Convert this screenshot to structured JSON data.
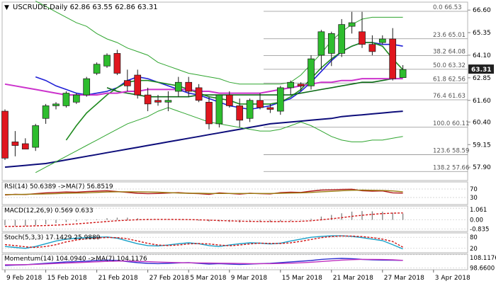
{
  "header": {
    "symbol_line": "USCRUDE,Daily  62.86 63.55 62.86 63.31"
  },
  "colors": {
    "bull": "#2ebd2e",
    "bear": "#e0161e",
    "candle_edge": "#1a1a1a",
    "sma_short": "#1f1fd6",
    "sma_green": "#1f8a1f",
    "sma_dark": "#0c6b16",
    "sma_pink": "#cc33cc",
    "sma_long": "#0d0d7a",
    "bollinger": "#2fa52f",
    "fib": "#909090",
    "price_box": "#202020",
    "rsi_line": "#b01818",
    "rsi_ma": "#9a7a10",
    "macd_hist": "#808080",
    "macd_signal": "#d01414",
    "stoch_k": "#18a0c8",
    "stoch_d": "#d01414",
    "mom_line": "#3030d0",
    "mom_ma": "#c030c0"
  },
  "chart_data": [
    {
      "panel": "main",
      "type": "candlestick",
      "title": "USCRUDE,Daily",
      "ohlc_header": {
        "open": 62.86,
        "high": 63.55,
        "low": 62.86,
        "close": 63.31
      },
      "ylim": [
        57.2,
        67.0
      ],
      "y_ticks": [
        "66.60",
        "65.35",
        "64.10",
        "62.85",
        "61.60",
        "60.40",
        "59.15",
        "57.90"
      ],
      "last_price_label": "63.31",
      "x_tick_labels": [
        "9 Feb 2018",
        "15 Feb 2018",
        "21 Feb 2018",
        "27 Feb 2018",
        "5 Mar 2018",
        "9 Mar 2018",
        "15 Mar 2018",
        "21 Mar 2018",
        "27 Mar 2018",
        "3 Apr 2018"
      ],
      "x_tick_index": [
        0,
        4,
        9,
        14,
        18,
        22,
        27,
        32,
        37,
        42
      ],
      "candles": [
        {
          "o": 61.0,
          "h": 61.1,
          "l": 58.3,
          "c": 58.4
        },
        {
          "o": 59.3,
          "h": 59.9,
          "l": 58.5,
          "c": 59.1
        },
        {
          "o": 59.2,
          "h": 59.5,
          "l": 58.9,
          "c": 58.9
        },
        {
          "o": 59.0,
          "h": 60.3,
          "l": 58.8,
          "c": 60.2
        },
        {
          "o": 60.6,
          "h": 61.4,
          "l": 60.3,
          "c": 61.3
        },
        {
          "o": 61.3,
          "h": 61.5,
          "l": 61.1,
          "c": 61.4
        },
        {
          "o": 61.3,
          "h": 62.1,
          "l": 61.2,
          "c": 62.0
        },
        {
          "o": 61.5,
          "h": 62.0,
          "l": 61.4,
          "c": 61.9
        },
        {
          "o": 61.9,
          "h": 62.9,
          "l": 61.8,
          "c": 62.8
        },
        {
          "o": 63.1,
          "h": 63.7,
          "l": 63.0,
          "c": 63.6
        },
        {
          "o": 63.5,
          "h": 64.2,
          "l": 63.4,
          "c": 64.1
        },
        {
          "o": 64.2,
          "h": 64.4,
          "l": 63.0,
          "c": 63.1
        },
        {
          "o": 62.7,
          "h": 63.3,
          "l": 62.1,
          "c": 62.4
        },
        {
          "o": 63.0,
          "h": 63.3,
          "l": 61.7,
          "c": 61.9
        },
        {
          "o": 61.9,
          "h": 62.3,
          "l": 61.0,
          "c": 61.4
        },
        {
          "o": 61.6,
          "h": 61.9,
          "l": 61.3,
          "c": 61.5
        },
        {
          "o": 61.5,
          "h": 62.1,
          "l": 61.0,
          "c": 61.6
        },
        {
          "o": 62.1,
          "h": 62.9,
          "l": 61.8,
          "c": 62.6
        },
        {
          "o": 62.6,
          "h": 62.9,
          "l": 61.8,
          "c": 62.1
        },
        {
          "o": 62.3,
          "h": 62.5,
          "l": 61.5,
          "c": 61.6
        },
        {
          "o": 61.5,
          "h": 61.8,
          "l": 60.0,
          "c": 60.3
        },
        {
          "o": 60.3,
          "h": 61.9,
          "l": 60.1,
          "c": 61.9
        },
        {
          "o": 61.9,
          "h": 62.1,
          "l": 61.2,
          "c": 61.3
        },
        {
          "o": 61.3,
          "h": 61.7,
          "l": 60.1,
          "c": 60.5
        },
        {
          "o": 60.6,
          "h": 61.7,
          "l": 60.4,
          "c": 61.6
        },
        {
          "o": 61.6,
          "h": 62.0,
          "l": 61.1,
          "c": 61.2
        },
        {
          "o": 61.2,
          "h": 61.4,
          "l": 60.9,
          "c": 61.1
        },
        {
          "o": 61.0,
          "h": 62.4,
          "l": 60.8,
          "c": 62.3
        },
        {
          "o": 62.3,
          "h": 62.7,
          "l": 61.9,
          "c": 62.6
        },
        {
          "o": 62.5,
          "h": 62.6,
          "l": 62.1,
          "c": 62.4
        },
        {
          "o": 62.4,
          "h": 64.1,
          "l": 62.2,
          "c": 63.9
        },
        {
          "o": 64.1,
          "h": 65.5,
          "l": 63.3,
          "c": 65.4
        },
        {
          "o": 64.2,
          "h": 65.4,
          "l": 63.5,
          "c": 65.3
        },
        {
          "o": 64.2,
          "h": 66.1,
          "l": 64.0,
          "c": 65.8
        },
        {
          "o": 65.7,
          "h": 66.5,
          "l": 65.3,
          "c": 65.9
        },
        {
          "o": 65.4,
          "h": 66.5,
          "l": 64.5,
          "c": 64.7
        },
        {
          "o": 64.7,
          "h": 65.2,
          "l": 64.1,
          "c": 64.3
        },
        {
          "o": 64.8,
          "h": 65.2,
          "l": 64.7,
          "c": 65.0
        },
        {
          "o": 65.0,
          "h": 65.6,
          "l": 62.7,
          "c": 62.8
        },
        {
          "o": 62.86,
          "h": 63.55,
          "l": 62.86,
          "c": 63.31
        }
      ],
      "series": [
        {
          "name": "",
          "color_key": "sma_short",
          "values": [
            null,
            null,
            null,
            62.9,
            62.7,
            62.4,
            62.2,
            62.0,
            61.9,
            62.0,
            62.1,
            62.3,
            62.7,
            62.9,
            62.8,
            62.6,
            62.4,
            62.2,
            62.0,
            61.9,
            61.7,
            61.5,
            61.3,
            61.2,
            61.1,
            61.2,
            61.3,
            61.5,
            61.7,
            62.1,
            62.6,
            63.2,
            63.8,
            64.3,
            64.6,
            64.8,
            64.8,
            64.7,
            64.7,
            64.6
          ]
        },
        {
          "name": "",
          "color_key": "sma_green",
          "values": [
            null,
            null,
            null,
            null,
            null,
            null,
            59.4,
            60.2,
            60.9,
            61.4,
            61.9,
            62.3,
            62.6,
            62.7,
            62.7,
            62.6,
            62.5,
            62.4,
            62.2,
            62.0,
            61.8,
            61.7,
            61.6,
            61.4,
            61.4,
            61.4,
            61.4,
            61.5,
            61.8,
            62.2,
            62.8,
            63.4,
            63.9,
            64.3,
            64.6,
            64.8,
            64.8,
            64.6,
            63.9,
            63.3
          ]
        },
        {
          "name": "",
          "color_key": "sma_dark",
          "values": [
            null,
            null,
            null,
            null,
            null,
            null,
            null,
            null,
            null,
            null,
            62.3,
            62.1,
            62.0,
            61.9,
            61.8,
            61.8,
            61.8,
            61.8,
            61.8,
            61.9,
            61.9,
            61.9,
            61.9,
            61.9,
            61.9,
            61.9,
            61.9,
            61.9,
            61.9,
            62.0,
            62.1,
            62.2,
            62.3,
            62.4,
            62.5,
            62.6,
            62.6,
            62.7,
            62.8,
            62.8
          ]
        },
        {
          "name": "",
          "color_key": "sma_pink",
          "values": [
            62.5,
            62.4,
            62.3,
            62.2,
            62.1,
            62.0,
            61.9,
            61.9,
            61.9,
            61.9,
            62.0,
            62.0,
            62.1,
            62.1,
            62.2,
            62.2,
            62.2,
            62.2,
            62.2,
            62.1,
            62.1,
            62.0,
            62.0,
            62.0,
            62.0,
            62.0,
            62.1,
            62.2,
            62.3,
            62.4,
            62.5,
            62.6,
            62.6,
            62.7,
            62.7,
            62.8,
            62.8,
            62.8,
            62.8,
            62.8
          ]
        },
        {
          "name": "",
          "color_key": "sma_long",
          "values": [
            57.9,
            57.95,
            58.0,
            58.05,
            58.1,
            58.2,
            58.3,
            58.4,
            58.5,
            58.6,
            58.7,
            58.8,
            58.9,
            59.0,
            59.1,
            59.2,
            59.3,
            59.4,
            59.5,
            59.6,
            59.7,
            59.8,
            59.9,
            60.0,
            60.1,
            60.2,
            60.3,
            60.35,
            60.4,
            60.45,
            60.5,
            60.55,
            60.6,
            60.7,
            60.75,
            60.8,
            60.85,
            60.9,
            60.95,
            61.0
          ]
        },
        {
          "name": "",
          "color_key": "bollinger",
          "values": [
            null,
            null,
            null,
            67.1,
            66.8,
            66.5,
            66.2,
            65.9,
            65.7,
            65.3,
            65.0,
            64.8,
            64.5,
            64.3,
            64.1,
            63.7,
            63.5,
            63.3,
            63.1,
            63.0,
            62.9,
            62.8,
            62.6,
            62.5,
            62.5,
            62.5,
            62.5,
            62.5,
            62.6,
            63.0,
            63.6,
            64.2,
            64.9,
            65.4,
            65.8,
            66.1,
            66.2,
            66.2,
            66.2,
            66.2
          ]
        },
        {
          "name": "",
          "color_key": "bollinger",
          "values": [
            null,
            null,
            null,
            57.6,
            57.9,
            58.2,
            58.5,
            58.8,
            59.1,
            59.4,
            59.7,
            60.0,
            60.3,
            60.5,
            60.7,
            61.0,
            61.2,
            61.0,
            60.8,
            60.6,
            60.4,
            60.3,
            60.2,
            60.1,
            60.0,
            59.9,
            59.9,
            60.0,
            60.2,
            60.4,
            60.2,
            59.9,
            59.6,
            59.4,
            59.3,
            59.3,
            59.4,
            59.4,
            59.5,
            59.6
          ]
        }
      ],
      "fibonacci": [
        {
          "label": "0.0",
          "value": 66.53
        },
        {
          "label": "23.6",
          "value": 65.01
        },
        {
          "label": "38.2",
          "value": 64.08
        },
        {
          "label": "50.0",
          "value": 63.32
        },
        {
          "label": "61.8",
          "value": 62.56
        },
        {
          "label": "76.4",
          "value": 61.63
        },
        {
          "label": "100.0",
          "value": 60.11
        },
        {
          "label": "123.6",
          "value": 58.59
        },
        {
          "label": "138.2",
          "value": 57.66
        }
      ]
    },
    {
      "panel": "rsi",
      "type": "line",
      "title": "RSI(14) 50.6389 ->MA(7) 56.8519",
      "ylim": [
        0,
        100
      ],
      "y_ticks": [
        "70",
        "30"
      ],
      "series": [
        {
          "name": "RSI(14)",
          "color_key": "rsi_line",
          "values": [
            42,
            45,
            44,
            48,
            52,
            54,
            56,
            55,
            58,
            60,
            62,
            58,
            54,
            50,
            48,
            49,
            51,
            53,
            50,
            48,
            45,
            52,
            49,
            46,
            50,
            48,
            47,
            53,
            55,
            54,
            60,
            65,
            66,
            68,
            69,
            62,
            60,
            61,
            52,
            50.6
          ]
        },
        {
          "name": "MA(7)",
          "color_key": "rsi_ma",
          "values": [
            44,
            44,
            45,
            46,
            47,
            48,
            50,
            51,
            52,
            54,
            56,
            57,
            57,
            57,
            56,
            55,
            53,
            51,
            50,
            50,
            49,
            49,
            49,
            49,
            49,
            49,
            49,
            50,
            51,
            52,
            54,
            57,
            59,
            62,
            64,
            65,
            64,
            63,
            61,
            56.9
          ]
        }
      ]
    },
    {
      "panel": "macd",
      "type": "bar",
      "title": "MACD(12,26,9) 0.569 0.633",
      "ylim": [
        -1.0,
        1.2
      ],
      "y_ticks": [
        "1.061",
        "0.00",
        "-0.835"
      ],
      "series": [
        {
          "name": "MACD",
          "color_key": "macd_hist",
          "values": [
            -0.5,
            -0.55,
            -0.55,
            -0.5,
            -0.4,
            -0.3,
            -0.2,
            -0.15,
            -0.05,
            0.05,
            0.15,
            0.2,
            0.2,
            0.15,
            0.1,
            0.05,
            0.02,
            0.0,
            -0.03,
            -0.08,
            -0.15,
            -0.15,
            -0.2,
            -0.25,
            -0.2,
            -0.2,
            -0.2,
            -0.15,
            -0.1,
            -0.05,
            0.1,
            0.3,
            0.45,
            0.6,
            0.75,
            0.8,
            0.78,
            0.75,
            0.65,
            0.569
          ]
        },
        {
          "name": "Signal",
          "color_key": "macd_signal",
          "values": [
            -0.6,
            -0.6,
            -0.58,
            -0.55,
            -0.52,
            -0.48,
            -0.43,
            -0.37,
            -0.3,
            -0.23,
            -0.15,
            -0.08,
            -0.03,
            0.01,
            0.03,
            0.04,
            0.04,
            0.03,
            0.02,
            0.0,
            -0.03,
            -0.06,
            -0.09,
            -0.12,
            -0.14,
            -0.15,
            -0.16,
            -0.16,
            -0.15,
            -0.13,
            -0.08,
            0.0,
            0.1,
            0.2,
            0.32,
            0.42,
            0.5,
            0.57,
            0.61,
            0.633
          ]
        }
      ]
    },
    {
      "panel": "stoch",
      "type": "line",
      "title": "Stoch(5,3,3) 17.1429 25.9889",
      "ylim": [
        0,
        100
      ],
      "y_ticks": [
        "80",
        "20"
      ],
      "series": [
        {
          "name": "%K",
          "color_key": "stoch_k",
          "values": [
            30,
            25,
            20,
            30,
            45,
            60,
            70,
            75,
            78,
            80,
            82,
            75,
            60,
            45,
            35,
            33,
            38,
            45,
            50,
            45,
            35,
            30,
            38,
            45,
            50,
            48,
            44,
            48,
            60,
            70,
            80,
            85,
            88,
            88,
            85,
            78,
            70,
            62,
            40,
            17.1
          ]
        },
        {
          "name": "%D",
          "color_key": "stoch_d",
          "values": [
            40,
            35,
            28,
            25,
            30,
            40,
            55,
            65,
            72,
            76,
            79,
            78,
            72,
            60,
            47,
            38,
            35,
            38,
            44,
            46,
            44,
            38,
            34,
            38,
            44,
            48,
            47,
            46,
            50,
            58,
            68,
            78,
            84,
            87,
            87,
            84,
            78,
            70,
            57,
            26.0
          ]
        }
      ]
    },
    {
      "panel": "momentum",
      "type": "line",
      "title": "Momentum(14) 104.0940 ->MA(7) 104.1176",
      "ylim": [
        98.0,
        108.0
      ],
      "y_ticks": [
        "108.1176",
        "98.6600"
      ],
      "series": [
        {
          "name": "Momentum(14)",
          "color_key": "mom_line",
          "values": [
            100.5,
            100.8,
            101.0,
            101.5,
            102.0,
            102.5,
            103.0,
            103.2,
            103.5,
            104.0,
            104.3,
            104.0,
            103.2,
            102.5,
            102.0,
            101.8,
            102.0,
            102.3,
            102.5,
            102.0,
            101.5,
            101.8,
            101.5,
            101.2,
            101.5,
            101.8,
            102.0,
            102.5,
            103.0,
            103.5,
            104.0,
            104.8,
            105.2,
            105.5,
            105.3,
            104.8,
            104.5,
            104.3,
            104.2,
            104.094
          ]
        },
        {
          "name": "MA(7)",
          "color_key": "mom_ma",
          "values": [
            101.0,
            101.0,
            101.1,
            101.3,
            101.6,
            101.9,
            102.2,
            102.5,
            102.8,
            103.1,
            103.4,
            103.6,
            103.6,
            103.4,
            103.2,
            102.9,
            102.7,
            102.5,
            102.4,
            102.3,
            102.2,
            102.1,
            102.0,
            101.9,
            101.8,
            101.8,
            101.8,
            101.9,
            102.1,
            102.4,
            102.8,
            103.3,
            103.8,
            104.3,
            104.6,
            104.8,
            104.8,
            104.7,
            104.5,
            104.1176
          ]
        }
      ]
    }
  ]
}
